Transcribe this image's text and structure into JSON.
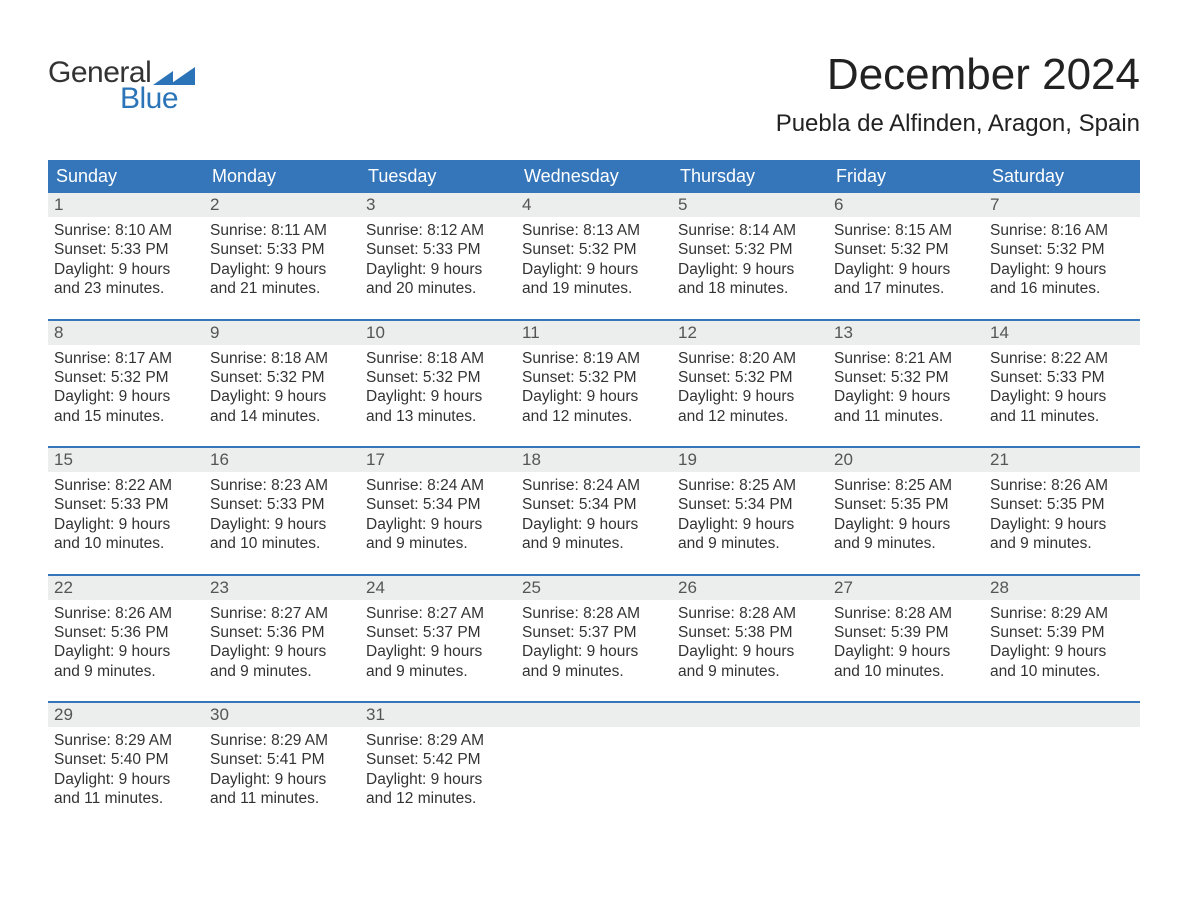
{
  "brand": {
    "word1": "General",
    "word2": "Blue"
  },
  "title": "December 2024",
  "location": "Puebla de Alfinden, Aragon, Spain",
  "colors": {
    "header_bg": "#3576ba",
    "header_text": "#ffffff",
    "daynum_bg": "#eceded",
    "text": "#333333",
    "brand_blue": "#2b74b8",
    "rule": "#3576ba",
    "background": "#ffffff"
  },
  "fonts": {
    "title_size": 44,
    "location_size": 24,
    "header_size": 18,
    "body_size": 15.5
  },
  "weekdays": [
    "Sunday",
    "Monday",
    "Tuesday",
    "Wednesday",
    "Thursday",
    "Friday",
    "Saturday"
  ],
  "labels": {
    "sunrise": "Sunrise:",
    "sunset": "Sunset:",
    "daylight": "Daylight:"
  },
  "weeks": [
    [
      {
        "n": "1",
        "sunrise": "8:10 AM",
        "sunset": "5:33 PM",
        "daylight": "9 hours and 23 minutes."
      },
      {
        "n": "2",
        "sunrise": "8:11 AM",
        "sunset": "5:33 PM",
        "daylight": "9 hours and 21 minutes."
      },
      {
        "n": "3",
        "sunrise": "8:12 AM",
        "sunset": "5:33 PM",
        "daylight": "9 hours and 20 minutes."
      },
      {
        "n": "4",
        "sunrise": "8:13 AM",
        "sunset": "5:32 PM",
        "daylight": "9 hours and 19 minutes."
      },
      {
        "n": "5",
        "sunrise": "8:14 AM",
        "sunset": "5:32 PM",
        "daylight": "9 hours and 18 minutes."
      },
      {
        "n": "6",
        "sunrise": "8:15 AM",
        "sunset": "5:32 PM",
        "daylight": "9 hours and 17 minutes."
      },
      {
        "n": "7",
        "sunrise": "8:16 AM",
        "sunset": "5:32 PM",
        "daylight": "9 hours and 16 minutes."
      }
    ],
    [
      {
        "n": "8",
        "sunrise": "8:17 AM",
        "sunset": "5:32 PM",
        "daylight": "9 hours and 15 minutes."
      },
      {
        "n": "9",
        "sunrise": "8:18 AM",
        "sunset": "5:32 PM",
        "daylight": "9 hours and 14 minutes."
      },
      {
        "n": "10",
        "sunrise": "8:18 AM",
        "sunset": "5:32 PM",
        "daylight": "9 hours and 13 minutes."
      },
      {
        "n": "11",
        "sunrise": "8:19 AM",
        "sunset": "5:32 PM",
        "daylight": "9 hours and 12 minutes."
      },
      {
        "n": "12",
        "sunrise": "8:20 AM",
        "sunset": "5:32 PM",
        "daylight": "9 hours and 12 minutes."
      },
      {
        "n": "13",
        "sunrise": "8:21 AM",
        "sunset": "5:32 PM",
        "daylight": "9 hours and 11 minutes."
      },
      {
        "n": "14",
        "sunrise": "8:22 AM",
        "sunset": "5:33 PM",
        "daylight": "9 hours and 11 minutes."
      }
    ],
    [
      {
        "n": "15",
        "sunrise": "8:22 AM",
        "sunset": "5:33 PM",
        "daylight": "9 hours and 10 minutes."
      },
      {
        "n": "16",
        "sunrise": "8:23 AM",
        "sunset": "5:33 PM",
        "daylight": "9 hours and 10 minutes."
      },
      {
        "n": "17",
        "sunrise": "8:24 AM",
        "sunset": "5:34 PM",
        "daylight": "9 hours and 9 minutes."
      },
      {
        "n": "18",
        "sunrise": "8:24 AM",
        "sunset": "5:34 PM",
        "daylight": "9 hours and 9 minutes."
      },
      {
        "n": "19",
        "sunrise": "8:25 AM",
        "sunset": "5:34 PM",
        "daylight": "9 hours and 9 minutes."
      },
      {
        "n": "20",
        "sunrise": "8:25 AM",
        "sunset": "5:35 PM",
        "daylight": "9 hours and 9 minutes."
      },
      {
        "n": "21",
        "sunrise": "8:26 AM",
        "sunset": "5:35 PM",
        "daylight": "9 hours and 9 minutes."
      }
    ],
    [
      {
        "n": "22",
        "sunrise": "8:26 AM",
        "sunset": "5:36 PM",
        "daylight": "9 hours and 9 minutes."
      },
      {
        "n": "23",
        "sunrise": "8:27 AM",
        "sunset": "5:36 PM",
        "daylight": "9 hours and 9 minutes."
      },
      {
        "n": "24",
        "sunrise": "8:27 AM",
        "sunset": "5:37 PM",
        "daylight": "9 hours and 9 minutes."
      },
      {
        "n": "25",
        "sunrise": "8:28 AM",
        "sunset": "5:37 PM",
        "daylight": "9 hours and 9 minutes."
      },
      {
        "n": "26",
        "sunrise": "8:28 AM",
        "sunset": "5:38 PM",
        "daylight": "9 hours and 9 minutes."
      },
      {
        "n": "27",
        "sunrise": "8:28 AM",
        "sunset": "5:39 PM",
        "daylight": "9 hours and 10 minutes."
      },
      {
        "n": "28",
        "sunrise": "8:29 AM",
        "sunset": "5:39 PM",
        "daylight": "9 hours and 10 minutes."
      }
    ],
    [
      {
        "n": "29",
        "sunrise": "8:29 AM",
        "sunset": "5:40 PM",
        "daylight": "9 hours and 11 minutes."
      },
      {
        "n": "30",
        "sunrise": "8:29 AM",
        "sunset": "5:41 PM",
        "daylight": "9 hours and 11 minutes."
      },
      {
        "n": "31",
        "sunrise": "8:29 AM",
        "sunset": "5:42 PM",
        "daylight": "9 hours and 12 minutes."
      },
      null,
      null,
      null,
      null
    ]
  ]
}
